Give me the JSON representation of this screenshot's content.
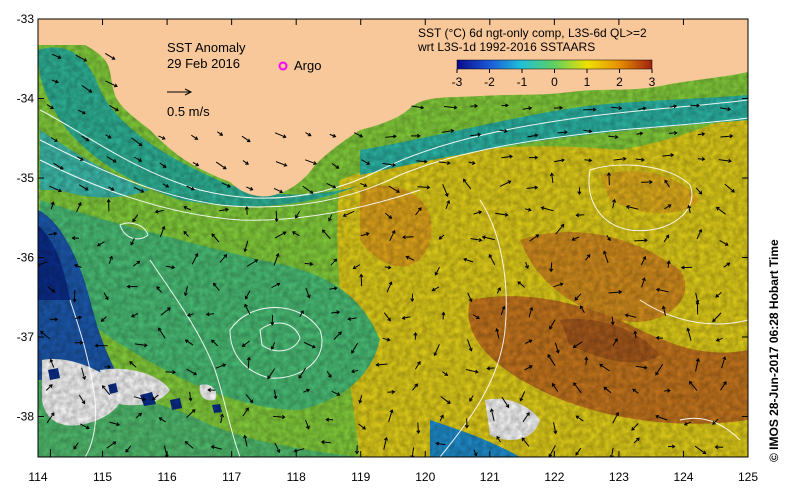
{
  "map": {
    "title": "SST Anomaly",
    "date": "29 Feb 2016",
    "argo_label": "Argo",
    "scale_label": "0.5 m/s",
    "legend_title_line1": "SST (°C) 6d ngt-only comp, L3S-6d QL>=2",
    "legend_title_line2": "wrt L3S-1d 1992-2016 SSTAARS",
    "credit": "© IMOS 28-Jun-2017 06:28 Hobart Time",
    "colorbar_ticks": [
      "-3",
      "-2",
      "-1",
      "0",
      "1",
      "2",
      "3"
    ],
    "lon_ticks": [
      "114",
      "115",
      "116",
      "117",
      "118",
      "119",
      "120",
      "121",
      "122",
      "123",
      "124",
      "125"
    ],
    "lat_ticks": [
      "-33",
      "-34",
      "-35",
      "-36",
      "-37",
      "-38"
    ],
    "colors": {
      "land": "#f8c89a",
      "cold": "#0b2e8c",
      "cool": "#22b5b5",
      "neutral": "#7fd04a",
      "warm": "#f2c000",
      "hot": "#b05a18",
      "argo": "#ff00ff"
    }
  }
}
